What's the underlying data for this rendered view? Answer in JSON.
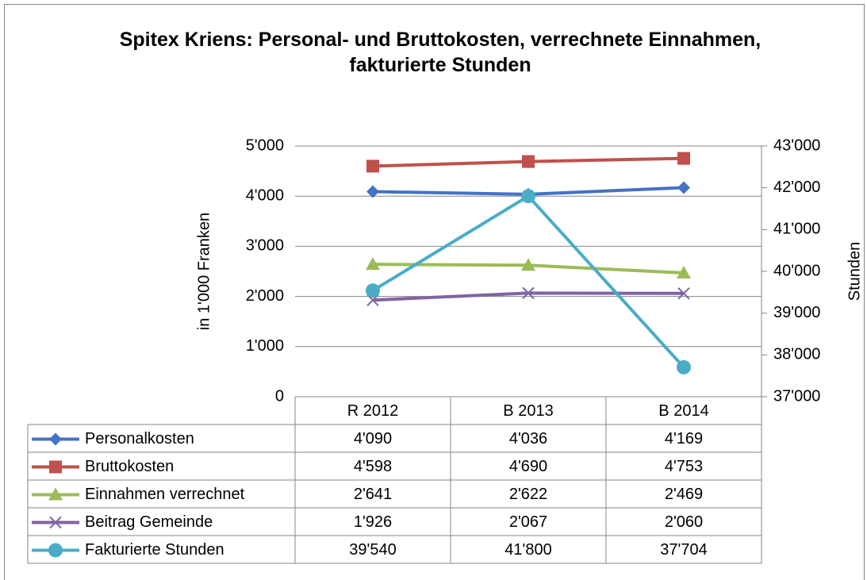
{
  "chart_data": {
    "type": "line",
    "title": "Spitex Kriens: Personal- und Bruttokosten, verrechnete Einnahmen, fakturierte Stunden",
    "y_label": "in 1'000 Franken",
    "y2_label": "Stunden",
    "categories": [
      "R 2012",
      "B 2013",
      "B 2014"
    ],
    "ylim": [
      0,
      5000
    ],
    "yticks": [
      0,
      {
        "value": 1000,
        "label": "1'000"
      },
      {
        "value": 2000,
        "label": "2'000"
      },
      {
        "value": 3000,
        "label": "3'000"
      },
      {
        "value": 4000,
        "label": "4'000"
      },
      {
        "value": 5000,
        "label": "5'000"
      }
    ],
    "y2lim": [
      37000,
      43000
    ],
    "y2ticks": [
      {
        "value": 37000,
        "label": "37'000"
      },
      {
        "value": 38000,
        "label": "38'000"
      },
      {
        "value": 39000,
        "label": "39'000"
      },
      {
        "value": 40000,
        "label": "40'000"
      },
      {
        "value": 41000,
        "label": "41'000"
      },
      {
        "value": 42000,
        "label": "42'000"
      },
      {
        "value": 43000,
        "label": "43'000"
      }
    ],
    "grid": true,
    "data_table": true,
    "series": [
      {
        "name": "Personalkosten",
        "color": "#4472c4",
        "marker": "diamond",
        "values": [
          4090,
          4036,
          4169
        ],
        "value_labels": [
          "4'090",
          "4'036",
          "4'169"
        ]
      },
      {
        "name": "Bruttokosten",
        "color": "#c0504d",
        "marker": "square",
        "values": [
          4598,
          4690,
          4753
        ],
        "value_labels": [
          "4'598",
          "4'690",
          "4'753"
        ]
      },
      {
        "name": "Einnahmen verrechnet",
        "color": "#9bbb59",
        "marker": "triangle",
        "values": [
          2641,
          2622,
          2469
        ],
        "value_labels": [
          "2'641",
          "2'622",
          "2'469"
        ]
      },
      {
        "name": "Beitrag Gemeinde",
        "color": "#8064a2",
        "marker": "x",
        "values": [
          1926,
          2067,
          2060
        ],
        "value_labels": [
          "1'926",
          "2'067",
          "2'060"
        ]
      },
      {
        "name": "Fakturierte Stunden",
        "color": "#4bacc6",
        "marker": "circle",
        "axis": "y2",
        "values": [
          39540,
          41800,
          37704
        ],
        "value_labels": [
          "39'540",
          "41'800",
          "37'704"
        ]
      }
    ]
  }
}
